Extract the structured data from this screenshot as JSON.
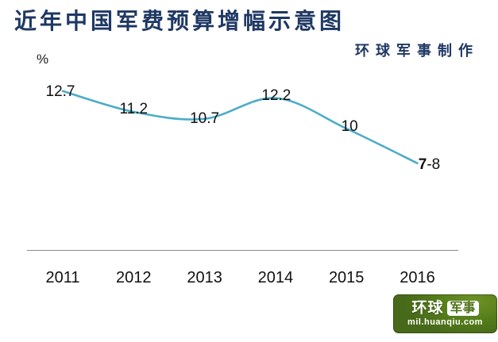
{
  "title": "近年中国军费预算增幅示意图",
  "credit": "环球军事制作",
  "unit_label": "%",
  "chart_data": {
    "type": "line",
    "title": "近年中国军费预算增幅示意图",
    "categories": [
      "2011",
      "2012",
      "2013",
      "2014",
      "2015",
      "2016"
    ],
    "values": [
      12.7,
      11.2,
      10.7,
      12.2,
      10,
      7.5
    ],
    "value_labels": [
      "12.7",
      "11.2",
      "10.7",
      "12.2",
      "10",
      "7-8"
    ],
    "value_label_styles": [
      null,
      null,
      null,
      null,
      null,
      "bold-first"
    ],
    "xlabel": "",
    "ylabel": "%",
    "ylim": [
      0,
      14
    ],
    "grid": false,
    "legend": false,
    "smoothed": true,
    "line_color": "#4bacc6"
  },
  "logo": {
    "brand_left": "环球",
    "brand_right": "军事",
    "domain": "mil.huanqiu.com",
    "bg_color": "#4c7017"
  },
  "colors": {
    "title_text": "#1f3864",
    "credit_text": "#1f3864",
    "axis_line": "#8c8c8c",
    "label_text": "#111111"
  }
}
